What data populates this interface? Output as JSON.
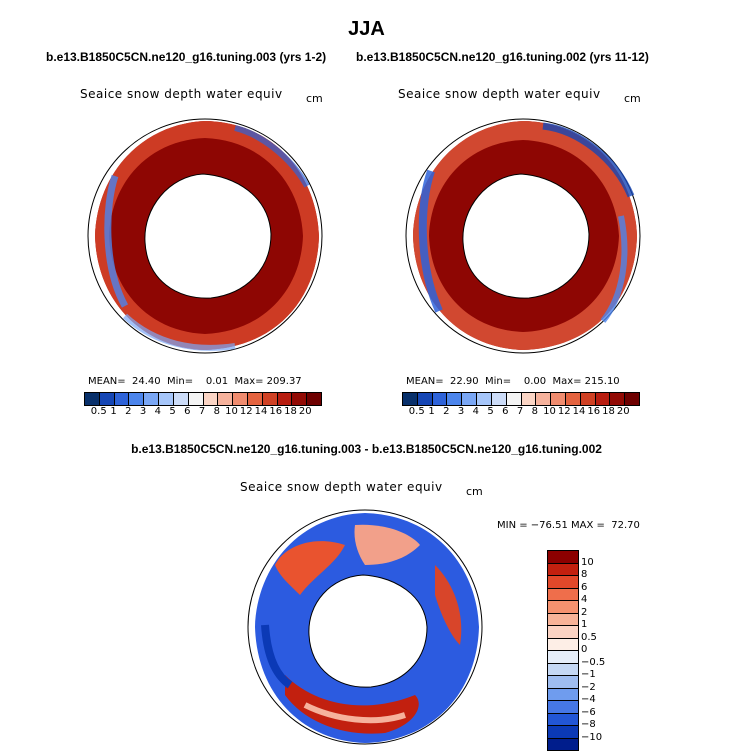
{
  "season": "JJA",
  "runs": {
    "left_label": "b.e13.B1850C5CN.ne120_g16.tuning.003 (yrs 1-2)",
    "right_label": "b.e13.B1850C5CN.ne120_g16.tuning.002 (yrs 11-12)",
    "diff_label": "b.e13.B1850C5CN.ne120_g16.tuning.003 - b.e13.B1850C5CN.ne120_g16.tuning.002"
  },
  "variable": "Seaice snow depth water equiv",
  "units": "cm",
  "panel_left": {
    "stats": "MEAN=  24.40  Min=    0.01  Max= 209.37"
  },
  "panel_right": {
    "stats": "MEAN=  22.90  Min=    0.00  Max= 215.10"
  },
  "diff_panel": {
    "stats": "MIN = −76.51 MAX =  72.70"
  },
  "abs_colorbar": {
    "labels": [
      "0.5",
      "1",
      "2",
      "3",
      "4",
      "5",
      "6",
      "7",
      "8",
      "10",
      "12",
      "14",
      "16",
      "18",
      "20"
    ],
    "colors": [
      "#08306b",
      "#1546b5",
      "#2e63d9",
      "#4c85ec",
      "#7aa7f5",
      "#a6c6fa",
      "#ccdcf8",
      "#f4f4f4",
      "#fbd5c5",
      "#f6b29c",
      "#f08c6f",
      "#e4633f",
      "#d04124",
      "#b81d10",
      "#920a04",
      "#6e0000"
    ]
  },
  "diff_colorbar": {
    "labels": [
      "10",
      "8",
      "6",
      "4",
      "2",
      "1",
      "0.5",
      "0",
      "−0.5",
      "−1",
      "−2",
      "−4",
      "−6",
      "−8",
      "−10"
    ],
    "colors": [
      "#8c0000",
      "#c2200f",
      "#e1482a",
      "#ef6e4b",
      "#f6926f",
      "#f8b398",
      "#fbd3c3",
      "#fdeee6",
      "#e6eef9",
      "#c5d8f4",
      "#9fbdf0",
      "#6f9cee",
      "#4677e6",
      "#2256d6",
      "#0b39b6",
      "#001d8c"
    ]
  }
}
